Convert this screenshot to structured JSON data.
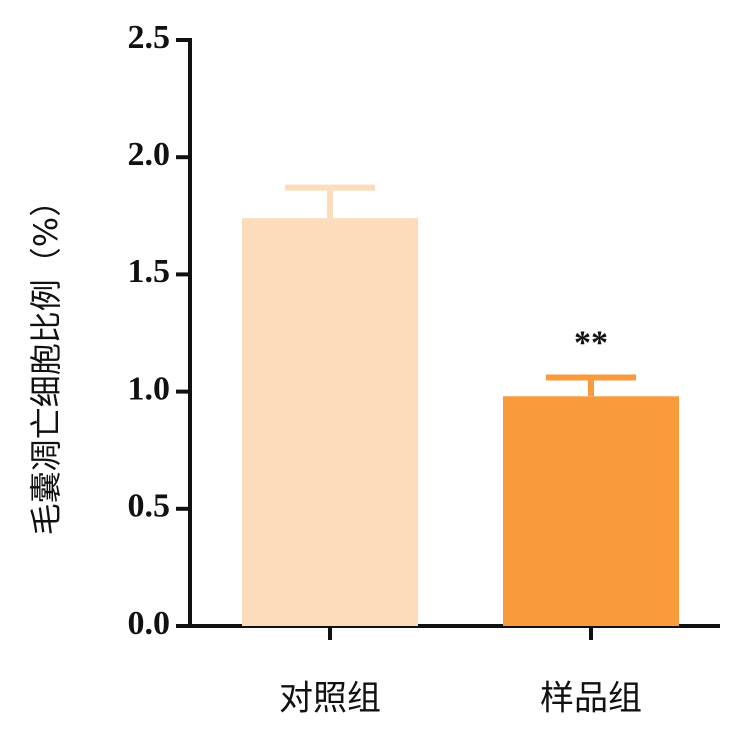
{
  "chart_data": {
    "type": "bar",
    "y_label": "毛囊凋亡细胞比例（%）",
    "categories": [
      "对照组",
      "样品组"
    ],
    "values": [
      1.74,
      0.98
    ],
    "errors": [
      0.13,
      0.08
    ],
    "colors": [
      "#fddcbc",
      "#f99b3c"
    ],
    "annotation": "**",
    "ylim": [
      0,
      2.5
    ],
    "yticks": [
      {
        "value": 0,
        "label": "0.0"
      },
      0.5,
      {
        "value": 1,
        "label": "1.0"
      },
      1.5,
      {
        "value": 2,
        "label": "2.0"
      },
      2.5
    ]
  }
}
